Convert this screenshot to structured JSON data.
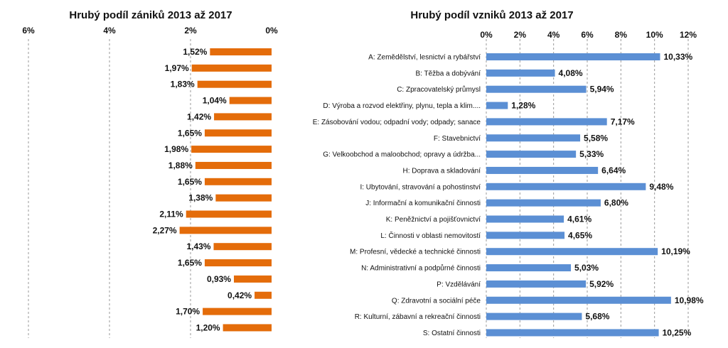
{
  "chart_data": [
    {
      "type": "bar",
      "orientation": "horizontal",
      "direction": "right-to-left",
      "title": "Hrubý podíl zániků 2013 až 2017",
      "xlim": [
        0,
        6
      ],
      "x_ticks": [
        "6%",
        "4%",
        "2%",
        "0%"
      ],
      "values": [
        1.52,
        1.97,
        1.83,
        1.04,
        1.42,
        1.65,
        1.98,
        1.88,
        1.65,
        1.38,
        2.11,
        2.27,
        1.43,
        1.65,
        0.93,
        0.42,
        1.7,
        1.2
      ],
      "value_labels": [
        "1,52%",
        "1,97%",
        "1,83%",
        "1,04%",
        "1,42%",
        "1,65%",
        "1,98%",
        "1,88%",
        "1,65%",
        "1,38%",
        "2,11%",
        "2,27%",
        "1,43%",
        "1,65%",
        "0,93%",
        "0,42%",
        "1,70%",
        "1,20%"
      ],
      "grid": "vertical-dashed",
      "bar_color": "#e46c0a"
    },
    {
      "type": "bar",
      "orientation": "horizontal",
      "title": "Hrubý podíl vzniků 2013 až 2017",
      "xlim": [
        0,
        12
      ],
      "x_ticks": [
        "0%",
        "2%",
        "4%",
        "6%",
        "8%",
        "10%",
        "12%"
      ],
      "categories": [
        "A: Zemědělství, lesnictví a rybářství",
        "B: Těžba a dobývání",
        "C: Zpracovatelský průmysl",
        "D: Výroba a rozvod elektřiny, plynu, tepla a klim....",
        "E: Zásobování vodou; odpadní vody; odpady; sanace",
        "F: Stavebnictví",
        "G: Velkoobchod a maloobchod; opravy a údržba...",
        "H: Doprava a skladování",
        "I: Ubytování, stravování a pohostinství",
        "J: Informační a komunikační činnosti",
        "K: Peněžnictví a pojišťovnictví",
        "L: Činnosti v oblasti nemovitostí",
        "M: Profesní, vědecké a technické činnosti",
        "N: Administrativní a podpůrné činnosti",
        "P: Vzdělávání",
        "Q: Zdravotní a sociální péče",
        "R: Kulturní, zábavní a rekreační činnosti",
        "S: Ostatní činnosti"
      ],
      "values": [
        10.33,
        4.08,
        5.94,
        1.28,
        7.17,
        5.58,
        5.33,
        6.64,
        9.48,
        6.8,
        4.61,
        4.65,
        10.19,
        5.03,
        5.92,
        10.98,
        5.68,
        10.25
      ],
      "value_labels": [
        "10,33%",
        "4,08%",
        "5,94%",
        "1,28%",
        "7,17%",
        "5,58%",
        "5,33%",
        "6,64%",
        "9,48%",
        "6,80%",
        "4,61%",
        "4,65%",
        "10,19%",
        "5,03%",
        "5,92%",
        "10,98%",
        "5,68%",
        "10,25%"
      ],
      "grid": "vertical-dashed",
      "bar_color": "#5b8fd4"
    }
  ]
}
